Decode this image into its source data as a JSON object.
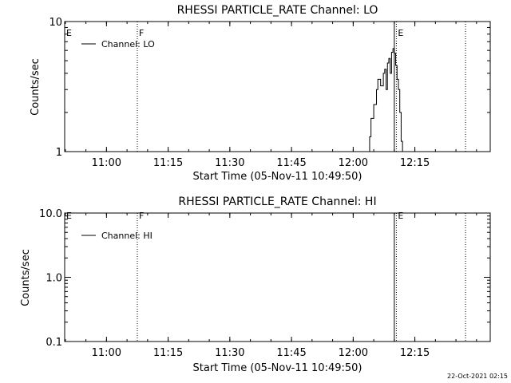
{
  "footer": {
    "timestamp": "22-Oct-2021 02:15"
  },
  "chart_data": [
    {
      "type": "line",
      "title": "RHESSI PARTICLE_RATE Channel: LO",
      "xlabel": "Start Time (05-Nov-11 10:49:50)",
      "ylabel": "Counts/sec",
      "yscale": "log",
      "ylim": [
        1,
        10
      ],
      "yticks": [
        {
          "value": 1,
          "label": "1"
        },
        {
          "value": 10,
          "label": "10"
        }
      ],
      "xlim": [
        "10:49:50",
        "12:33:20"
      ],
      "xticks": [
        "11:00",
        "11:15",
        "11:30",
        "11:45",
        "12:00",
        "12:15"
      ],
      "legend": {
        "position": "top-left",
        "entries": [
          "Channel: LO"
        ]
      },
      "markers": [
        {
          "time": "10:49:50",
          "label": "E",
          "style": "dotted"
        },
        {
          "time": "11:07:30",
          "label": "F",
          "style": "dotted"
        },
        {
          "time": "12:10:00",
          "label": "",
          "style": "solid"
        },
        {
          "time": "12:10:30",
          "label": "E",
          "style": "dotted"
        },
        {
          "time": "12:27:20",
          "label": "",
          "style": "dotted"
        }
      ],
      "series": [
        {
          "name": "Channel: LO",
          "x": [
            "12:03:40",
            "12:04:00",
            "12:04:20",
            "12:04:40",
            "12:05:00",
            "12:05:20",
            "12:05:40",
            "12:06:00",
            "12:06:20",
            "12:06:40",
            "12:07:00",
            "12:07:20",
            "12:07:40",
            "12:08:00",
            "12:08:20",
            "12:08:40",
            "12:09:00",
            "12:09:20",
            "12:09:40",
            "12:10:00",
            "12:10:20",
            "12:10:40",
            "12:11:00",
            "12:11:20",
            "12:11:40",
            "12:12:00"
          ],
          "y": [
            1.0,
            1.3,
            1.8,
            1.8,
            2.3,
            2.3,
            3.0,
            3.6,
            3.6,
            3.2,
            3.2,
            4.0,
            4.3,
            3.0,
            4.8,
            5.2,
            4.0,
            5.8,
            6.2,
            5.7,
            4.6,
            3.6,
            3.0,
            2.0,
            1.2,
            1.0
          ]
        }
      ]
    },
    {
      "type": "line",
      "title": "RHESSI PARTICLE_RATE Channel: HI",
      "xlabel": "Start Time (05-Nov-11 10:49:50)",
      "ylabel": "Counts/sec",
      "yscale": "log",
      "ylim": [
        0.1,
        10
      ],
      "yticks": [
        {
          "value": 0.1,
          "label": "0.1"
        },
        {
          "value": 1,
          "label": "1.0"
        },
        {
          "value": 10,
          "label": "10.0"
        }
      ],
      "xlim": [
        "10:49:50",
        "12:33:20"
      ],
      "xticks": [
        "11:00",
        "11:15",
        "11:30",
        "11:45",
        "12:00",
        "12:15"
      ],
      "legend": {
        "position": "top-left",
        "entries": [
          "Channel: HI"
        ]
      },
      "markers": [
        {
          "time": "10:49:50",
          "label": "E",
          "style": "dotted"
        },
        {
          "time": "11:07:30",
          "label": "F",
          "style": "dotted"
        },
        {
          "time": "12:10:00",
          "label": "",
          "style": "solid"
        },
        {
          "time": "12:10:30",
          "label": "E",
          "style": "dotted"
        },
        {
          "time": "12:27:20",
          "label": "",
          "style": "dotted"
        }
      ],
      "series": [
        {
          "name": "Channel: HI",
          "x": [],
          "y": []
        }
      ]
    }
  ]
}
